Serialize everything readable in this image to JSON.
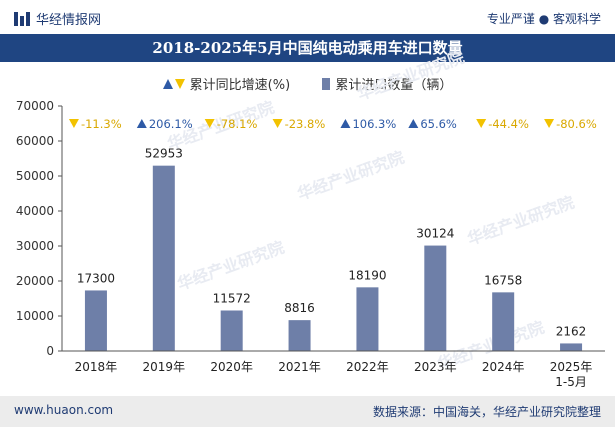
{
  "header": {
    "brand": "华经情报网",
    "tagline": "专业严谨 ● 客观科学"
  },
  "footer": {
    "site": "www.huaon.com",
    "source": "数据来源：中国海关，华经产业研究院整理"
  },
  "watermark": "华经产业研究院",
  "colors": {
    "bar": "#6e7fa8",
    "title_bg": "#1f4582",
    "up": "#2e5aa6",
    "down": "#f2c200"
  },
  "chart_data": {
    "type": "bar",
    "title": "2018-2025年5月中国纯电动乘用车进口数量",
    "categories": [
      "2018年",
      "2019年",
      "2020年",
      "2021年",
      "2022年",
      "2023年",
      "2024年",
      "2025年\n1-5月"
    ],
    "series": [
      {
        "name": "累计进口数量（辆）",
        "values": [
          17300,
          52953,
          11572,
          8816,
          18190,
          30124,
          16758,
          2162
        ]
      },
      {
        "name": "累计同比增速(%)",
        "values": [
          -11.3,
          206.1,
          -78.1,
          -23.8,
          106.3,
          65.6,
          -44.4,
          -80.6
        ],
        "labels": [
          "-11.3%",
          "206.1%",
          "-78.1%",
          "-23.8%",
          "106.3%",
          "65.6%",
          "-44.4%",
          "-80.6%"
        ]
      }
    ],
    "ylim": [
      0,
      70000
    ],
    "yticks": [
      0,
      10000,
      20000,
      30000,
      40000,
      50000,
      60000,
      70000
    ],
    "legend_position": "top-center",
    "grid": false
  }
}
